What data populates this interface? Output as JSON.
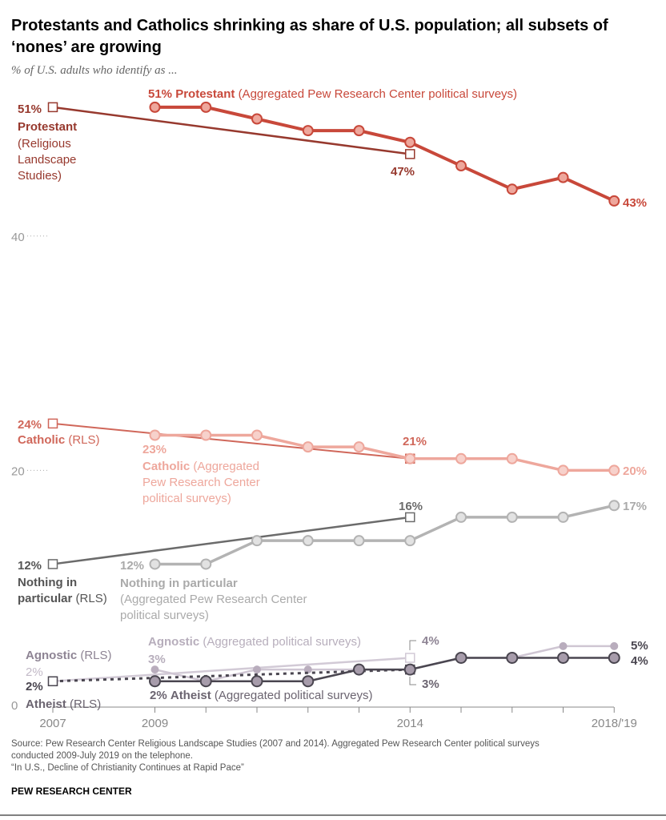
{
  "title_line1": "Protestants and Catholics shrinking as share of U.S. population; all subsets of",
  "title_line2": "‘nones’ are growing",
  "subtitle": "% of U.S. adults who identify as ...",
  "footer": {
    "source1": "Source: Pew Research Center Religious Landscape Studies (2007 and 2014). Aggregated Pew Research Center political surveys",
    "source2": "conducted 2009-July 2019 on the telephone.",
    "note": "“In U.S., Decline of Christianity Continues at Rapid Pace”",
    "brand": "PEW RESEARCH CENTER"
  },
  "labels": {
    "prot_agg_val": "51%",
    "prot_agg_name": "Protestant",
    "prot_agg_src": "(Aggregated Pew Research Center political surveys)",
    "prot_rls_val": "51%",
    "prot_rls_name": "Protestant",
    "prot_rls_src1": "(Religious",
    "prot_rls_src2": "Landscape",
    "prot_rls_src3": "Studies)",
    "prot_rls_end": "47%",
    "prot_agg_end": "43%",
    "cath_rls_val": "24%",
    "cath_rls_name": "Catholic",
    "cath_rls_src": "(RLS)",
    "cath_agg_val": "23%",
    "cath_agg_name": "Catholic",
    "cath_agg_src1": "(Aggregated",
    "cath_agg_src2": "Pew Research Center",
    "cath_agg_src3": "political surveys)",
    "cath_rls_end": "21%",
    "cath_agg_end": "20%",
    "nip_rls_end": "16%",
    "nip_agg_end": "17%",
    "nip_rls_val": "12%",
    "nip_rls_name1": "Nothing in",
    "nip_rls_name2": "particular",
    "nip_rls_src": "(RLS)",
    "nip_agg_val": "12%",
    "nip_agg_name": "Nothing in particular",
    "nip_agg_src1": "(Aggregated Pew Research Center",
    "nip_agg_src2": "political surveys)",
    "agn_rls_name": "Agnostic",
    "agn_rls_src": "(RLS)",
    "agn_rls_val": "2%",
    "ath_rls_val": "2%",
    "ath_rls_name": "Atheist",
    "ath_rls_src": "(RLS)",
    "agn_agg_name": "Agnostic",
    "agn_agg_src": "(Aggregated political surveys)",
    "agn_agg_val": "3%",
    "ath_agg_val": "2%",
    "ath_agg_name": "Atheist",
    "ath_agg_src": "(Aggregated political surveys)",
    "agn_rls_end": "4%",
    "ath_rls_end": "3%",
    "agn_agg_end": "5%",
    "ath_agg_end": "4%"
  },
  "chart_data": {
    "type": "line",
    "title": "Protestants and Catholics shrinking as share of U.S. population; all subsets of ‘nones’ are growing",
    "subtitle": "% of U.S. adults who identify as ...",
    "x_ticks": [
      2007,
      2009,
      2014,
      "2018/'19"
    ],
    "y_ticks": [
      0,
      20,
      40
    ],
    "ylim": [
      0,
      52
    ],
    "grid": false,
    "series": [
      {
        "id": "prot_rls",
        "name": "Protestant (Religious Landscape Studies)",
        "x": [
          2007,
          2014
        ],
        "values": [
          51,
          47
        ],
        "color": "#97392e",
        "marker": "square"
      },
      {
        "id": "prot_agg",
        "name": "Protestant (Aggregated Pew Research Center political surveys)",
        "x": [
          2009,
          2010,
          2011,
          2012,
          2013,
          2014,
          2015,
          2016,
          2017,
          2018
        ],
        "values": [
          51,
          51,
          50,
          49,
          49,
          48,
          46,
          44,
          45,
          43
        ],
        "color": "#c8483a",
        "marker": "circle"
      },
      {
        "id": "cath_rls",
        "name": "Catholic (RLS)",
        "x": [
          2007,
          2014
        ],
        "values": [
          24,
          21
        ],
        "color": "#d0675a",
        "marker": "square"
      },
      {
        "id": "cath_agg",
        "name": "Catholic (Aggregated Pew Research Center political surveys)",
        "x": [
          2009,
          2010,
          2011,
          2012,
          2013,
          2014,
          2015,
          2016,
          2017,
          2018
        ],
        "values": [
          23,
          23,
          23,
          22,
          22,
          21,
          21,
          21,
          20,
          20
        ],
        "color": "#eea79c",
        "marker": "circle"
      },
      {
        "id": "nip_rls",
        "name": "Nothing in particular (RLS)",
        "x": [
          2007,
          2014
        ],
        "values": [
          12,
          16
        ],
        "color": "#6b6b6b",
        "marker": "square"
      },
      {
        "id": "nip_agg",
        "name": "Nothing in particular (Aggregated Pew Research Center political surveys)",
        "x": [
          2009,
          2010,
          2011,
          2012,
          2013,
          2014,
          2015,
          2016,
          2017,
          2018
        ],
        "values": [
          12,
          12,
          14,
          14,
          14,
          14,
          16,
          16,
          16,
          17
        ],
        "color": "#b3b3b3",
        "marker": "circle"
      },
      {
        "id": "agn_rls",
        "name": "Agnostic (RLS)",
        "x": [
          2007,
          2014
        ],
        "values": [
          2,
          4
        ],
        "color": "#d2cad6",
        "marker": "square"
      },
      {
        "id": "agn_agg",
        "name": "Agnostic (Aggregated political surveys)",
        "x": [
          2009,
          2010,
          2011,
          2012,
          2013,
          2014,
          2015,
          2016,
          2017,
          2018
        ],
        "values": [
          3,
          2,
          3,
          3,
          3,
          3,
          4,
          4,
          5,
          5
        ],
        "color": "#cfc6d3",
        "marker": "dot"
      },
      {
        "id": "ath_rls",
        "name": "Atheist (RLS)",
        "x": [
          2007,
          2014
        ],
        "values": [
          2,
          3
        ],
        "color": "#4a4650",
        "marker": "square",
        "dashed": true
      },
      {
        "id": "ath_agg",
        "name": "Atheist (Aggregated political surveys)",
        "x": [
          2009,
          2010,
          2011,
          2012,
          2013,
          2014,
          2015,
          2016,
          2017,
          2018
        ],
        "values": [
          2,
          2,
          2,
          2,
          3,
          3,
          4,
          4,
          4,
          4
        ],
        "color": "#4a4650",
        "marker": "circle"
      }
    ]
  }
}
